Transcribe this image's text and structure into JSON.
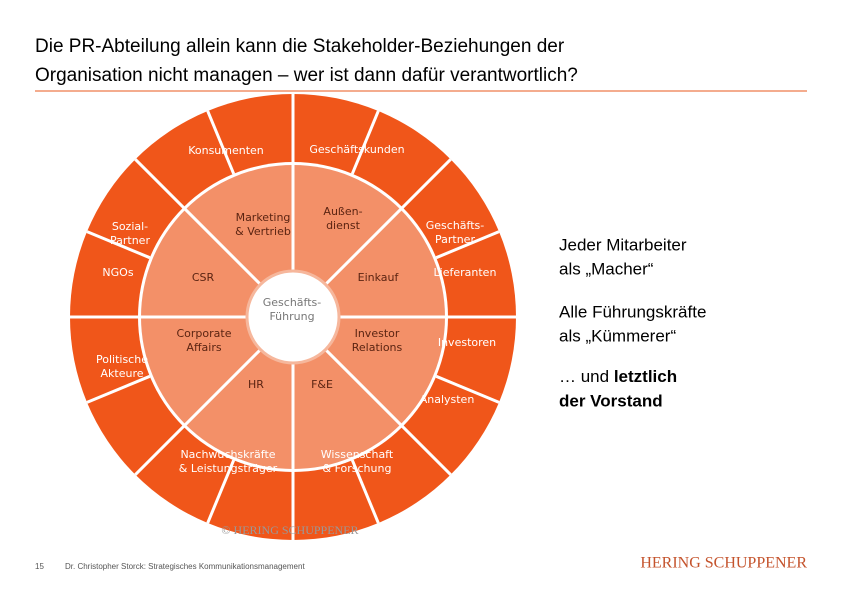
{
  "header": {
    "title_lines": [
      "Die PR-Abteilung allein kann die Stakeholder-Beziehungen der",
      "Organisation nicht managen – wer ist dann dafür verantwortlich?"
    ]
  },
  "diagram": {
    "center": [
      "Geschäfts-",
      "Führung"
    ],
    "inner_ring": [
      [
        "Marketing",
        "& Vertrieb"
      ],
      [
        "Außen-",
        "dienst"
      ],
      [
        "Einkauf"
      ],
      [
        "Investor",
        "Relations"
      ],
      [
        "F&E"
      ],
      [
        "HR"
      ],
      [
        "Corporate",
        "Affairs"
      ],
      [
        "CSR"
      ]
    ],
    "outer_ring": [
      [
        "Konsumenten"
      ],
      [
        "Geschäftskunden"
      ],
      [
        "Geschäfts-",
        "Partner"
      ],
      [
        "Lieferanten"
      ],
      [
        "Investoren"
      ],
      [
        "Analysten"
      ],
      [
        "Wissenschaft",
        "& Forschung"
      ],
      [
        "Nachwuchskräfte",
        "& Leistungsträger"
      ],
      [
        "Politische",
        "Akteure"
      ],
      [
        "NGOs"
      ],
      [
        "Sozial-",
        "Partner"
      ]
    ],
    "copyright": "© HERING SCHUPPENER"
  },
  "side_notes": [
    [
      "Jeder Mitarbeiter",
      "als „Macher“"
    ],
    [
      "Alle Führungskräfte",
      "als „Kümmerer“"
    ]
  ],
  "last_note": {
    "prefix": "… und ",
    "bold_1": "letztlich",
    "bold_2": "der Vorstand"
  },
  "footer": {
    "page": "15",
    "author": "Dr. Christopher Storck: Strategisches Kommunikationsmanagement",
    "logo": "HERING SCHUPPENER"
  }
}
